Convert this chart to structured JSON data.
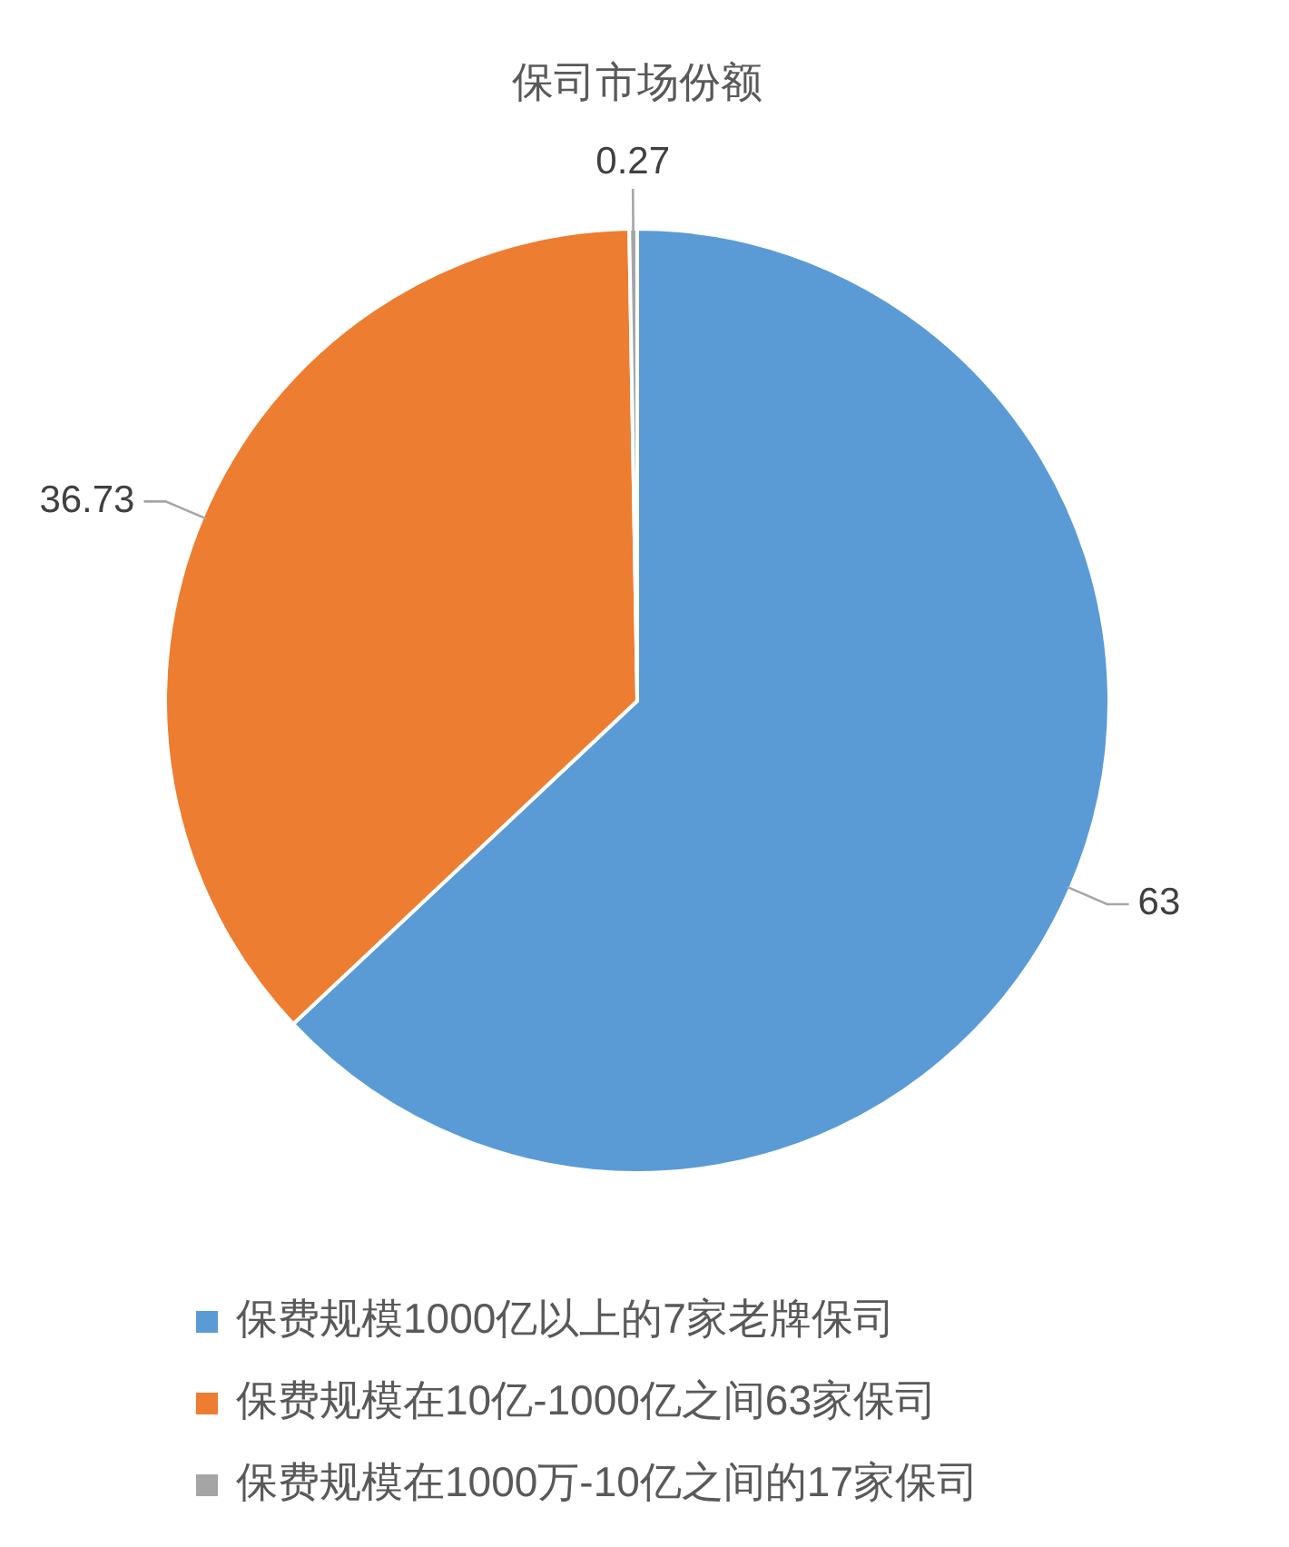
{
  "chart_data": {
    "type": "pie",
    "title": "保司市场份额",
    "categories": [
      "保费规模1000亿以上的7家老牌保司",
      "保费规模在10亿-1000亿之间63家保司",
      "保费规模在1000万-10亿之间的17家保司"
    ],
    "values": [
      63,
      36.73,
      0.27
    ],
    "colors": [
      "#5b9bd5",
      "#ed7d31",
      "#a5a5a5"
    ],
    "data_labels": true,
    "legend": "bottom"
  }
}
